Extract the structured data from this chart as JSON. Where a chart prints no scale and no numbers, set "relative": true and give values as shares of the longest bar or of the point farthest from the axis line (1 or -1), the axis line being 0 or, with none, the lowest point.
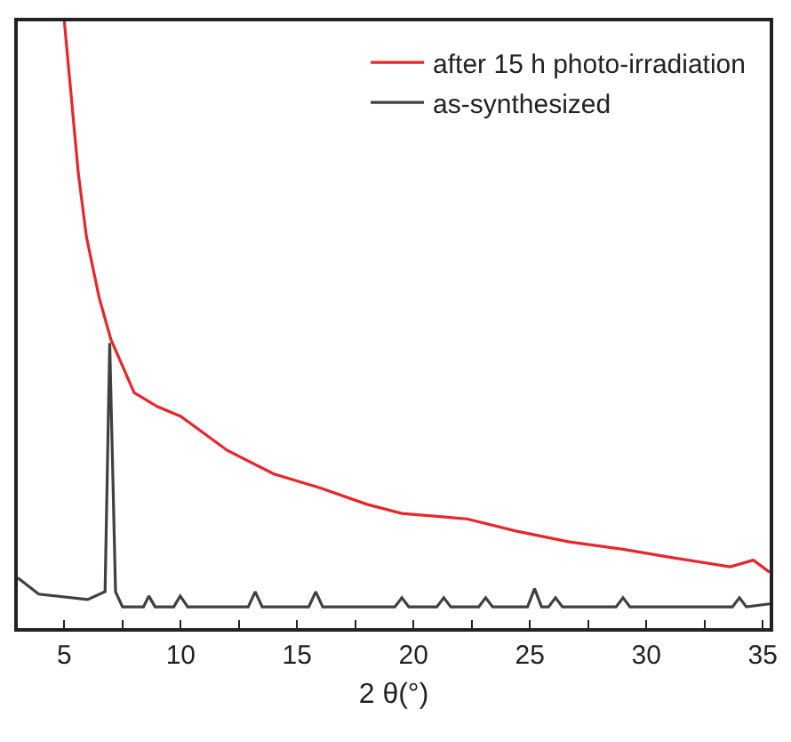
{
  "chart_data": {
    "type": "line",
    "xlabel": "2 θ(°)",
    "relative": true,
    "xlim": [
      3,
      35.3
    ],
    "xticks": [
      5,
      {
        "value": 7.5,
        "label": null
      },
      10,
      {
        "value": 12.5,
        "label": null
      },
      15,
      {
        "value": 17.5,
        "label": null
      },
      20,
      {
        "value": 22.5,
        "label": null
      },
      25,
      {
        "value": 27.5,
        "label": null
      },
      30,
      {
        "value": 32.5,
        "label": null
      },
      35
    ],
    "legend": "top right",
    "grid": false,
    "marker": "none",
    "line_style": "solid",
    "series": [
      {
        "name": "after 15 h photo-irradiation",
        "color": "#e8262b",
        "x": [
          5.0,
          5.6,
          5.95,
          6.5,
          7.0,
          8.0,
          9.0,
          10.0,
          12.0,
          14.0,
          16.0,
          18.0,
          19.5,
          22.3,
          24.4,
          26.7,
          29.0,
          31.3,
          33.6,
          34.6,
          35.3
        ],
        "values": [
          1.0,
          0.75,
          0.645,
          0.544,
          0.476,
          0.388,
          0.365,
          0.349,
          0.293,
          0.254,
          0.231,
          0.204,
          0.189,
          0.18,
          0.16,
          0.142,
          0.13,
          0.115,
          0.101,
          0.112,
          0.092
        ]
      },
      {
        "name": "as-synthesized",
        "color": "#404040",
        "x": [
          3.0,
          3.9,
          6.0,
          6.75,
          6.95,
          7.2,
          7.5,
          8.4,
          8.63,
          8.9,
          9.7,
          9.98,
          10.3,
          12.9,
          13.2,
          13.5,
          15.5,
          15.8,
          16.1,
          19.2,
          19.5,
          19.8,
          21.0,
          21.3,
          21.6,
          22.8,
          23.1,
          23.4,
          24.9,
          25.2,
          25.5,
          25.8,
          26.1,
          26.4,
          28.7,
          29.0,
          29.3,
          33.7,
          34.0,
          34.3,
          35.3
        ],
        "values": [
          0.083,
          0.056,
          0.047,
          0.06,
          0.47,
          0.06,
          0.035,
          0.035,
          0.053,
          0.035,
          0.035,
          0.053,
          0.035,
          0.035,
          0.06,
          0.035,
          0.035,
          0.06,
          0.035,
          0.035,
          0.05,
          0.035,
          0.035,
          0.05,
          0.035,
          0.035,
          0.05,
          0.035,
          0.035,
          0.065,
          0.035,
          0.035,
          0.05,
          0.035,
          0.035,
          0.05,
          0.035,
          0.035,
          0.05,
          0.035,
          0.04
        ]
      }
    ]
  }
}
